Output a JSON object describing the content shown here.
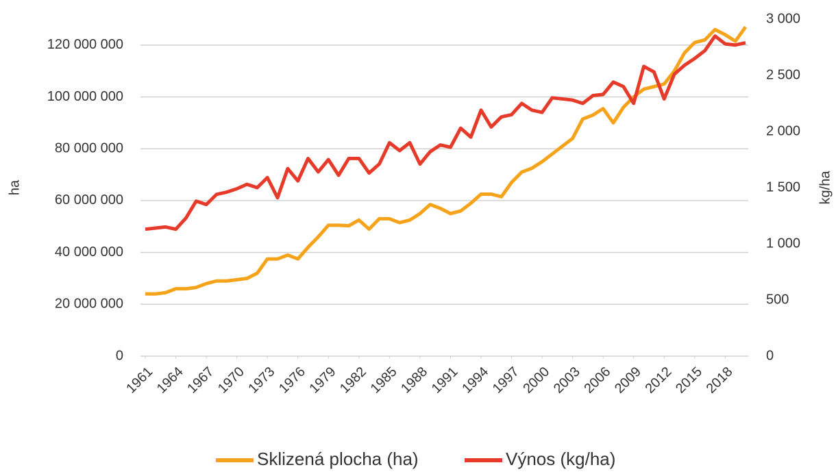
{
  "chart_data": {
    "type": "line",
    "y_label": "ha",
    "y2_label": "kg/ha",
    "x": [
      1961,
      1962,
      1963,
      1964,
      1965,
      1966,
      1967,
      1968,
      1969,
      1970,
      1971,
      1972,
      1973,
      1974,
      1975,
      1976,
      1977,
      1978,
      1979,
      1980,
      1981,
      1982,
      1983,
      1984,
      1985,
      1986,
      1987,
      1988,
      1989,
      1990,
      1991,
      1992,
      1993,
      1994,
      1995,
      1996,
      1997,
      1998,
      1999,
      2000,
      2001,
      2002,
      2003,
      2004,
      2005,
      2006,
      2007,
      2008,
      2009,
      2010,
      2011,
      2012,
      2013,
      2014,
      2015,
      2016,
      2017,
      2018,
      2019,
      2020
    ],
    "xlim": [
      1961,
      2020
    ],
    "xticks": [
      1961,
      1964,
      1967,
      1970,
      1973,
      1976,
      1979,
      1982,
      1985,
      1988,
      1991,
      1994,
      1997,
      2000,
      2003,
      2006,
      2009,
      2012,
      2015,
      2018
    ],
    "ylim": [
      0,
      130000000
    ],
    "yticks": [
      0,
      {
        "value": 20000000,
        "label": "20 000 000"
      },
      {
        "value": 40000000,
        "label": "40 000 000"
      },
      {
        "value": 60000000,
        "label": "60 000 000"
      },
      {
        "value": 80000000,
        "label": "80 000 000"
      },
      {
        "value": 100000000,
        "label": "100 000 000"
      },
      {
        "value": 120000000,
        "label": "120 000 000"
      }
    ],
    "y2lim": [
      0,
      3000
    ],
    "y2ticks": [
      0,
      500,
      {
        "value": 1000,
        "label": "1 000"
      },
      {
        "value": 1500,
        "label": "1 500"
      },
      {
        "value": 2000,
        "label": "2 000"
      },
      {
        "value": 2500,
        "label": "2 500"
      },
      {
        "value": 3000,
        "label": "3 000"
      }
    ],
    "grid": true,
    "legend": "bottom",
    "series": [
      {
        "name": "Sklizená plocha (ha)",
        "color": "#f5a31a",
        "axis": "y",
        "values": [
          24000000,
          24000000,
          24500000,
          26000000,
          26000000,
          26500000,
          28000000,
          29000000,
          29000000,
          29500000,
          30000000,
          32000000,
          37500000,
          37500000,
          39000000,
          37500000,
          42000000,
          46000000,
          50500000,
          50500000,
          50300000,
          52500000,
          49000000,
          53000000,
          53000000,
          51500000,
          52500000,
          55000000,
          58500000,
          57000000,
          55000000,
          56000000,
          59000000,
          62500000,
          62500000,
          61500000,
          67000000,
          71000000,
          72500000,
          75000000,
          78000000,
          81000000,
          84000000,
          91500000,
          93000000,
          95500000,
          90000000,
          96000000,
          100000000,
          103000000,
          104000000,
          105000000,
          110000000,
          117000000,
          121000000,
          122000000,
          126000000,
          124000000,
          121500000,
          127000000
        ]
      },
      {
        "name": "Výnos (kg/ha)",
        "color": "#e63b2a",
        "axis": "y2",
        "values": [
          1130,
          1140,
          1150,
          1130,
          1230,
          1380,
          1350,
          1440,
          1460,
          1490,
          1530,
          1500,
          1590,
          1410,
          1670,
          1560,
          1760,
          1640,
          1750,
          1610,
          1760,
          1760,
          1630,
          1710,
          1900,
          1830,
          1900,
          1710,
          1820,
          1880,
          1860,
          2030,
          1950,
          2190,
          2040,
          2130,
          2150,
          2250,
          2190,
          2170,
          2300,
          2290,
          2280,
          2250,
          2320,
          2330,
          2440,
          2400,
          2250,
          2580,
          2530,
          2290,
          2510,
          2590,
          2650,
          2720,
          2850,
          2780,
          2770,
          2790
        ]
      }
    ]
  }
}
